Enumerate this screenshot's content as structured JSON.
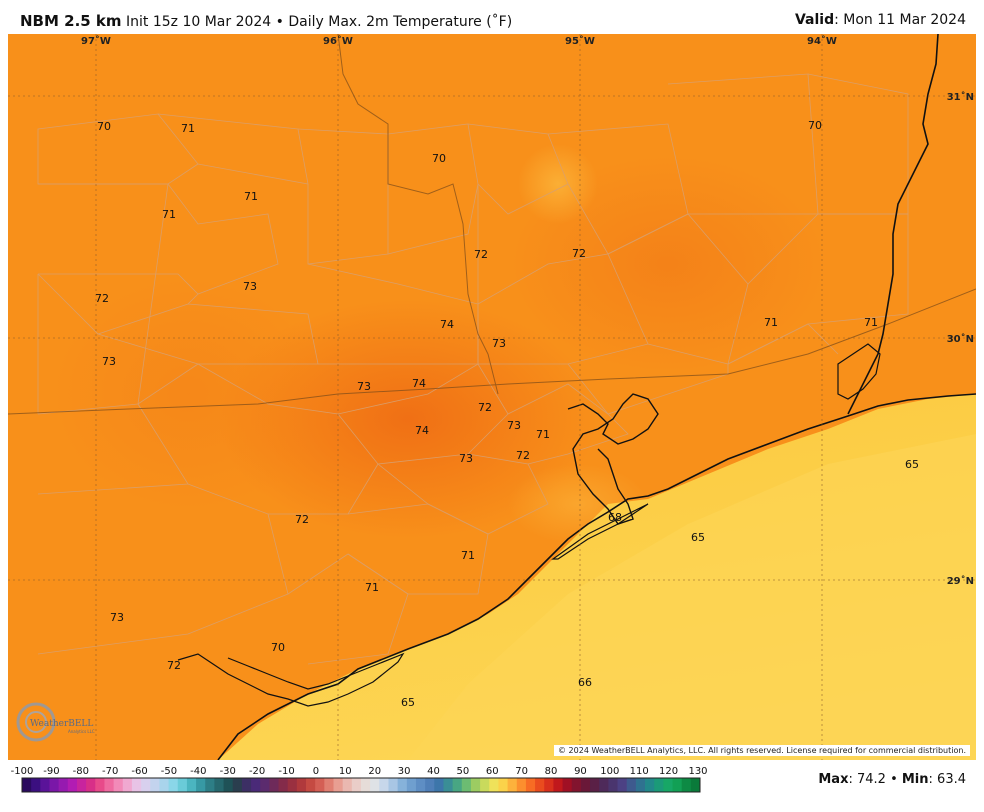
{
  "header": {
    "model": "NBM 2.5 km",
    "description": "Init 15z 10 Mar 2024 • Daily Max. 2m Temperature (˚F)",
    "valid_label": "Valid",
    "valid_value": ": Mon 11 Mar 2024"
  },
  "map": {
    "lon_labels": [
      "97˚W",
      "96˚W",
      "95˚W",
      "94˚W"
    ],
    "lat_labels": [
      "31˚N",
      "30˚N",
      "29˚N"
    ],
    "values": [
      "70",
      "71",
      "70",
      "71",
      "71",
      "70",
      "72",
      "73",
      "72",
      "72",
      "74",
      "73",
      "71",
      "71",
      "73",
      "74",
      "73",
      "72",
      "73",
      "71",
      "74",
      "73",
      "72",
      "65",
      "68",
      "65",
      "72",
      "71",
      "71",
      "73",
      "70",
      "72",
      "66",
      "65"
    ],
    "copyright": "© 2024 WeatherBELL Analytics, LLC. All rights reserved. License required for commercial distribution.",
    "logo_text": "WeatherBELL",
    "logo_sub": "Analytics LLC"
  },
  "colorbar": {
    "ticks": [
      "-100",
      "-90",
      "-80",
      "-70",
      "-60",
      "-50",
      "-40",
      "-30",
      "-20",
      "-10",
      "0",
      "10",
      "20",
      "30",
      "40",
      "50",
      "60",
      "70",
      "80",
      "90",
      "100",
      "110",
      "120",
      "130"
    ],
    "colors": [
      "#2a0a5e",
      "#3b0f80",
      "#5a1399",
      "#7a17a8",
      "#961ab0",
      "#b21cb3",
      "#c8249e",
      "#d82f88",
      "#e84a8a",
      "#ef6aa0",
      "#f28ab8",
      "#f0a8d0",
      "#e8c3e6",
      "#d8d0ee",
      "#c3d3ee",
      "#a9d4ec",
      "#8ad6e8",
      "#6acbd8",
      "#4bb5c0",
      "#3799a4",
      "#2d7e86",
      "#26686e",
      "#1f5257",
      "#2a3e4e",
      "#3c2f64",
      "#4a2a78",
      "#5b2b6e",
      "#6e2a5a",
      "#842b4a",
      "#9a3040",
      "#b0393c",
      "#c54a42",
      "#d45f55",
      "#e07f72",
      "#e89e92",
      "#eab8b0",
      "#eacdc8",
      "#e6dcd8",
      "#dfe2e6",
      "#c7d7ea",
      "#a8c6e4",
      "#86b2da",
      "#6f9fcf",
      "#5e8ec4",
      "#4f7fb8",
      "#3d76aa",
      "#3a8e96",
      "#48a683",
      "#6cbc72",
      "#9ccc62",
      "#c9da5c",
      "#efe25a",
      "#fbd24a",
      "#fdb23c",
      "#fc8f2e",
      "#f76c24",
      "#ea4c1e",
      "#d9301c",
      "#c1181c",
      "#a01024",
      "#82142e",
      "#6a1838",
      "#5a2046",
      "#4e2a5a",
      "#4a356e",
      "#4c4184",
      "#3e5a8e",
      "#2f7290",
      "#22888a",
      "#1b9a78",
      "#17a766",
      "#12a055",
      "#0d8a44",
      "#0a7a3a"
    ],
    "max_label": "Max",
    "max_value": ": 74.2",
    "separator": " • ",
    "min_label": "Min",
    "min_value": ": 63.4"
  }
}
